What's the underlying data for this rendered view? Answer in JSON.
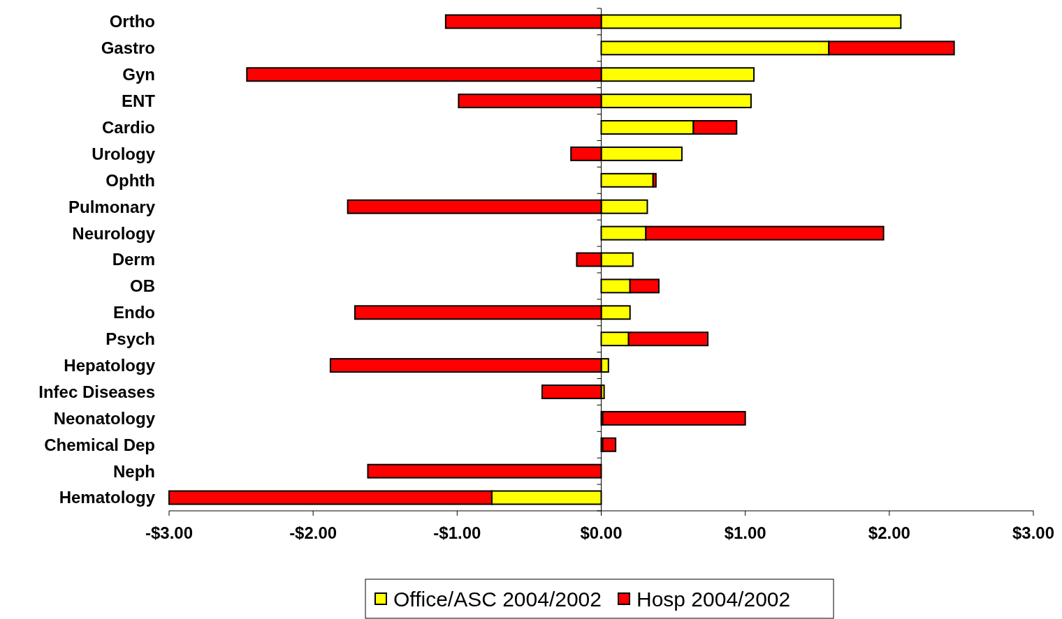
{
  "chart_data": {
    "type": "bar",
    "orientation": "horizontal",
    "stacked": true,
    "categories": [
      "Ortho",
      "Gastro",
      "Gyn",
      "ENT",
      "Cardio",
      "Urology",
      "Ophth",
      "Pulmonary",
      "Neurology",
      "Derm",
      "OB",
      "Endo",
      "Psych",
      "Hepatology",
      "Infec Diseases",
      "Neonatology",
      "Chemical Dep",
      "Neph",
      "Hematology"
    ],
    "series": [
      {
        "name": "Office/ASC 2004/2002",
        "color": "#ffff00",
        "values": [
          2.08,
          1.58,
          1.06,
          1.04,
          0.64,
          0.56,
          0.36,
          0.32,
          0.31,
          0.22,
          0.2,
          0.2,
          0.19,
          0.05,
          0.02,
          0.01,
          0.01,
          0,
          -0.76
        ]
      },
      {
        "name": "Hosp 2004/2002",
        "color": "#ff0000",
        "values": [
          -1.08,
          0.87,
          -2.46,
          -0.99,
          0.3,
          -0.21,
          0.02,
          -1.76,
          1.65,
          -0.17,
          0.2,
          -1.71,
          0.55,
          -1.88,
          -0.41,
          0.99,
          0.09,
          -1.62,
          -2.24
        ]
      }
    ],
    "xlim": [
      -3,
      3
    ],
    "xticks": [
      {
        "value": -3,
        "label": "-$3.00"
      },
      {
        "value": -2,
        "label": "-$2.00"
      },
      {
        "value": -1,
        "label": "-$1.00"
      },
      {
        "value": 0,
        "label": "$0.00"
      },
      {
        "value": 1,
        "label": "$1.00"
      },
      {
        "value": 2,
        "label": "$2.00"
      },
      {
        "value": 3,
        "label": "$3.00"
      }
    ],
    "legend": "bottom"
  }
}
